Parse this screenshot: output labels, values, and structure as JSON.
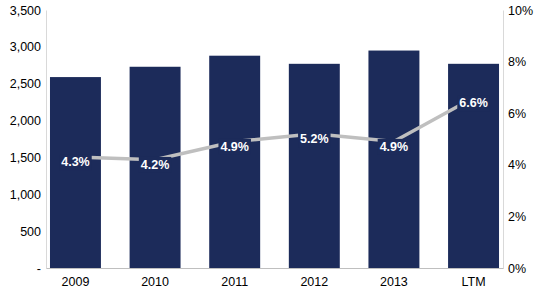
{
  "chart_data": {
    "type": "bar",
    "categories": [
      "2009",
      "2010",
      "2011",
      "2012",
      "2013",
      "LTM"
    ],
    "series": [
      {
        "type": "bar",
        "color": "#1c2b5a",
        "values": [
          2590,
          2730,
          2880,
          2770,
          2950,
          2770
        ]
      },
      {
        "type": "line",
        "color": "#bfbfbf",
        "axis": "y2",
        "data_labels": true,
        "values": [
          4.3,
          4.2,
          4.9,
          5.2,
          4.9,
          6.6
        ],
        "value_labels": [
          "4.3%",
          "4.2%",
          "4.9%",
          "5.2%",
          "4.9%",
          "6.6%"
        ]
      }
    ],
    "ylim": [
      0,
      3500
    ],
    "yticks": [
      {
        "value": 0,
        "label": "-"
      },
      500,
      {
        "value": 1000,
        "label": "1,000"
      },
      {
        "value": 1500,
        "label": "1,500"
      },
      {
        "value": 2000,
        "label": "2,000"
      },
      {
        "value": 2500,
        "label": "2,500"
      },
      {
        "value": 3000,
        "label": "3,000"
      },
      {
        "value": 3500,
        "label": "3,500"
      }
    ],
    "y2lim": [
      0,
      10
    ],
    "y2ticks": [
      {
        "value": 0,
        "label": "0%"
      },
      {
        "value": 2,
        "label": "2%"
      },
      {
        "value": 4,
        "label": "4%"
      },
      {
        "value": 6,
        "label": "6%"
      },
      {
        "value": 8,
        "label": "8%"
      },
      {
        "value": 10,
        "label": "10%"
      }
    ],
    "grid": false
  }
}
